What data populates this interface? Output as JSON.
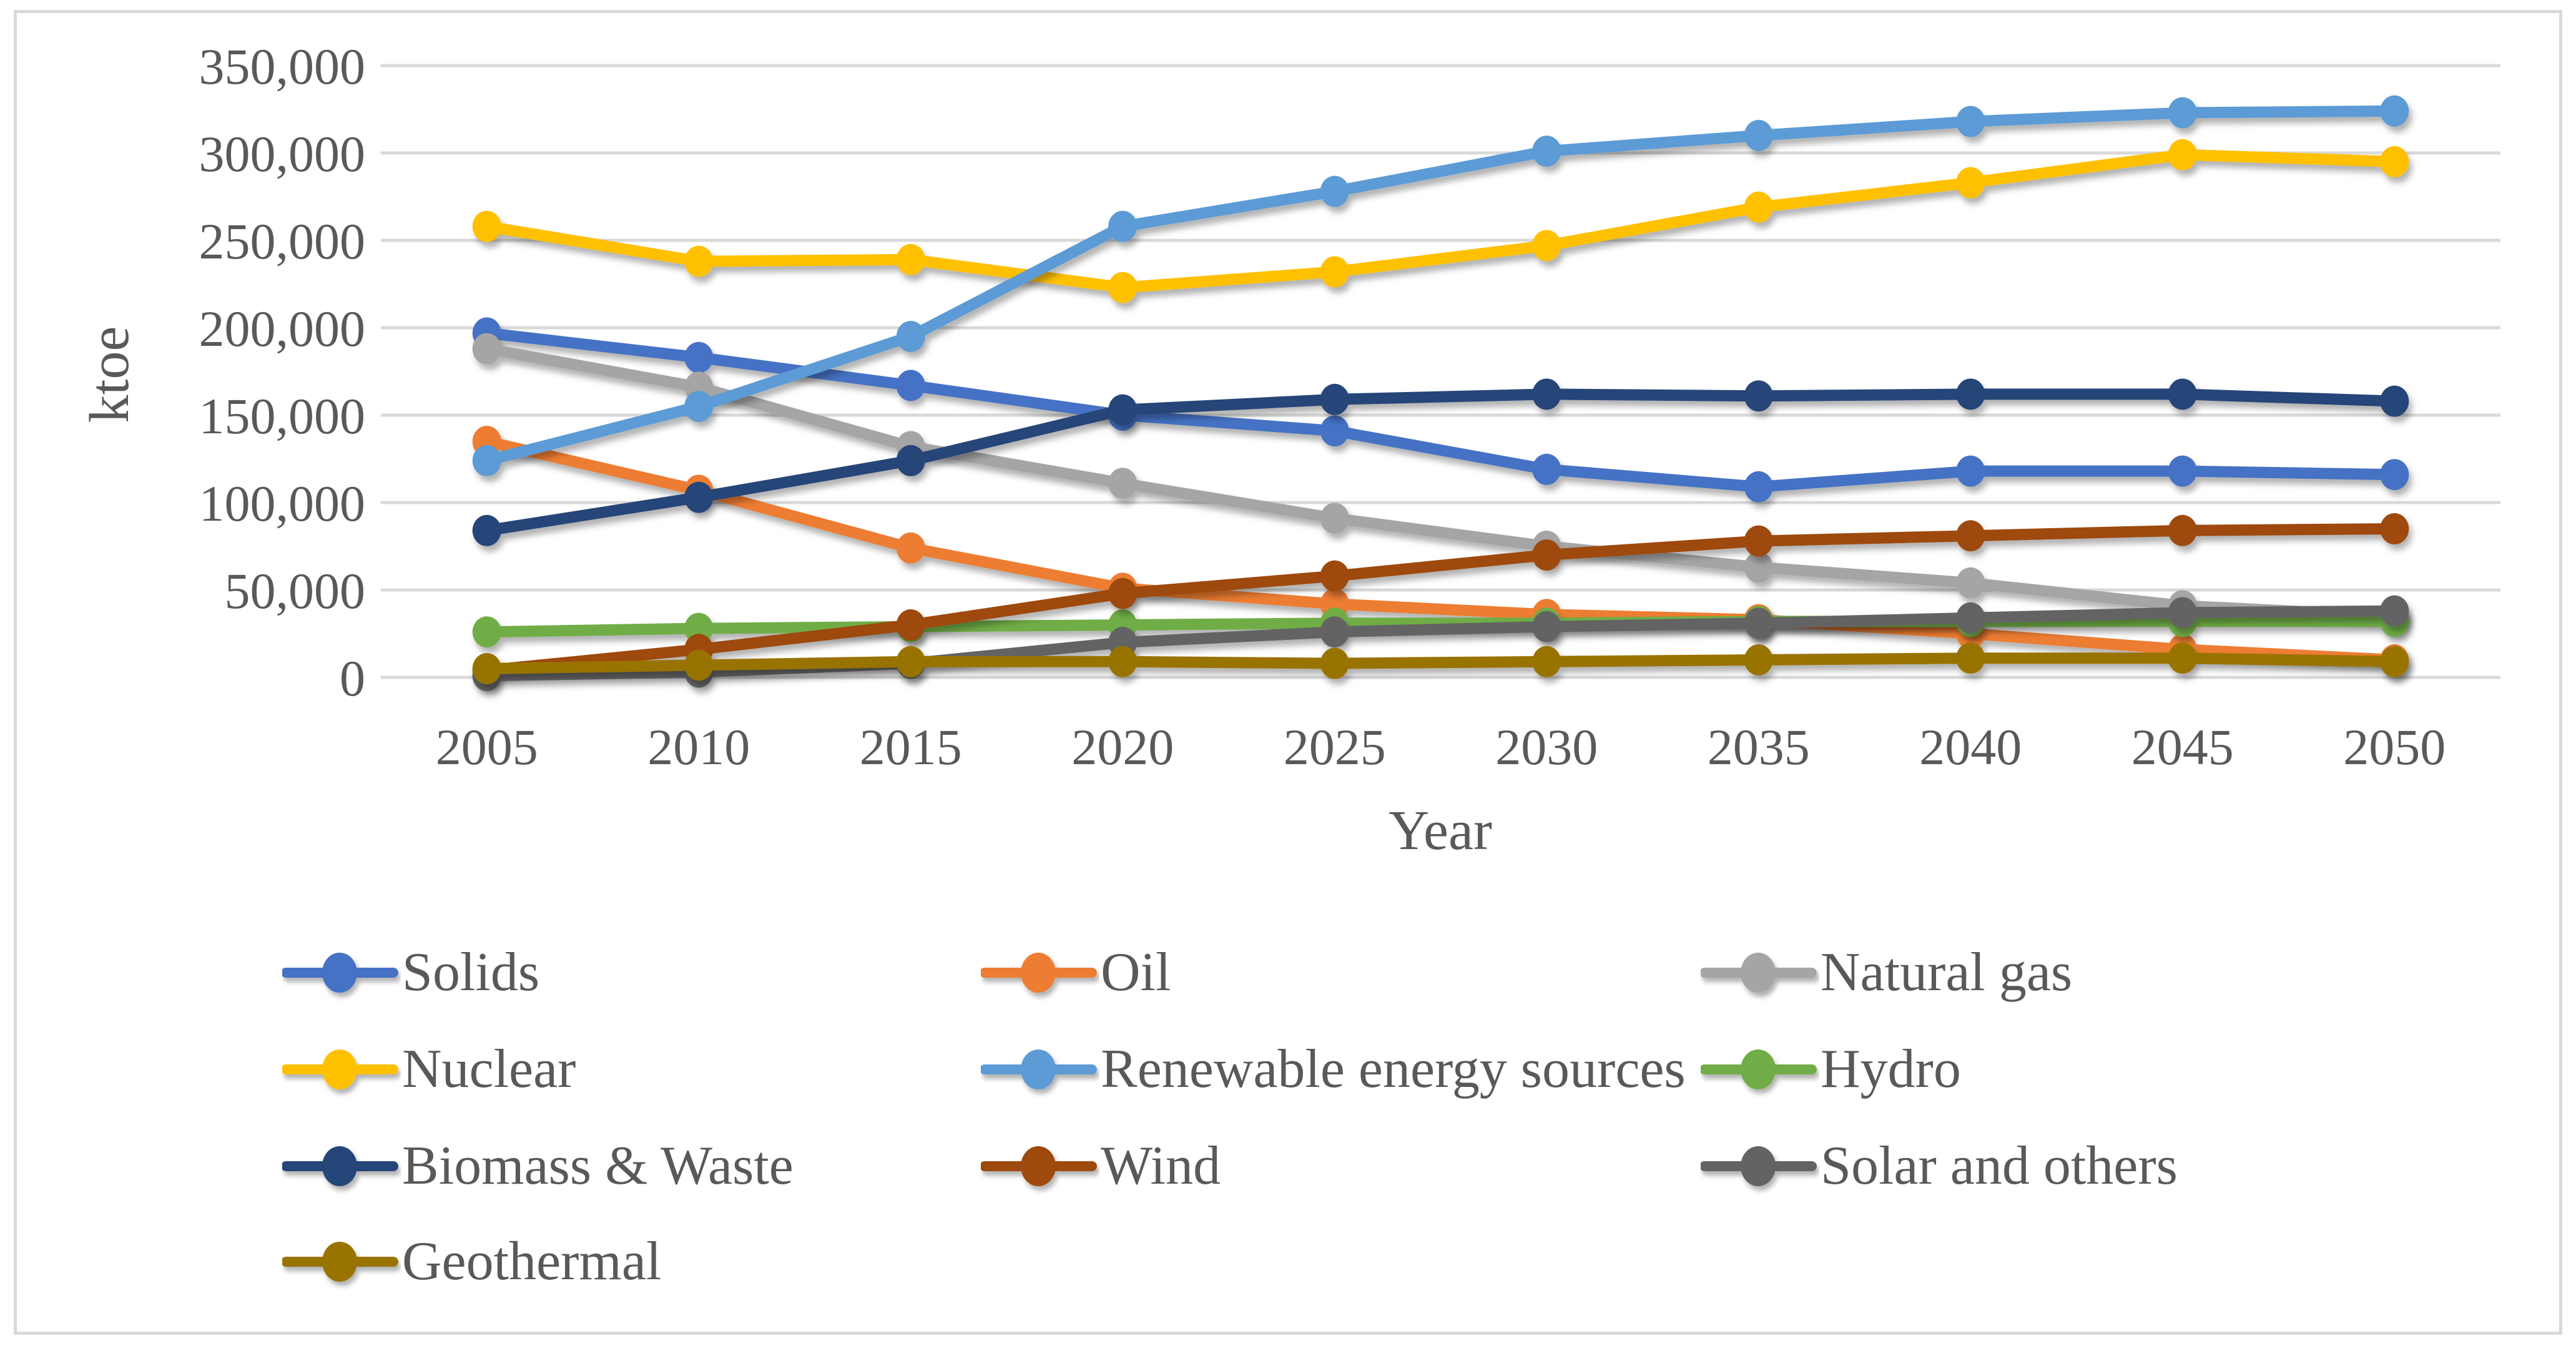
{
  "figure": {
    "background": "#FFFFFF",
    "border_color": "#D9D9D9",
    "gridline_color": "#D9D9D9",
    "text_color": "#595959"
  },
  "chart_data": {
    "type": "line",
    "title": "",
    "xlabel": "Year",
    "ylabel": "ktoe",
    "unit": "ktoe",
    "grid": true,
    "legend_position": "bottom",
    "ylim": [
      0,
      350000
    ],
    "ytick_step": 50000,
    "ytick_labels": [
      "0",
      "50,000",
      "100,000",
      "150,000",
      "200,000",
      "250,000",
      "300,000",
      "350,000"
    ],
    "categories": [
      "2005",
      "2010",
      "2015",
      "2020",
      "2025",
      "2030",
      "2035",
      "2040",
      "2045",
      "2050"
    ],
    "series": [
      {
        "name": "Solids",
        "color": "#4472C4",
        "values": [
          197000,
          183000,
          167000,
          150000,
          141000,
          119000,
          109000,
          118000,
          118000,
          116000
        ]
      },
      {
        "name": "Oil",
        "color": "#ED7D31",
        "values": [
          135000,
          107000,
          74000,
          51000,
          42000,
          36000,
          33000,
          25000,
          16000,
          10000
        ]
      },
      {
        "name": "Natural gas",
        "color": "#A5A5A5",
        "values": [
          188000,
          166000,
          132000,
          111000,
          91000,
          75000,
          63000,
          54000,
          41000,
          35000
        ]
      },
      {
        "name": "Nuclear",
        "color": "#FFC000",
        "values": [
          258000,
          238000,
          239000,
          223000,
          232000,
          247000,
          269000,
          283000,
          299000,
          295000
        ]
      },
      {
        "name": "Renewable energy sources",
        "color": "#5B9BD5",
        "values": [
          124000,
          155000,
          195000,
          258000,
          278000,
          301000,
          310000,
          318000,
          323000,
          324000
        ]
      },
      {
        "name": "Hydro",
        "color": "#70AD47",
        "values": [
          26000,
          28000,
          29000,
          30000,
          31000,
          31000,
          32000,
          32000,
          32000,
          32000
        ]
      },
      {
        "name": "Biomass & Waste",
        "color": "#264478",
        "values": [
          84000,
          103000,
          124000,
          153000,
          159000,
          162000,
          161000,
          162000,
          162000,
          158000
        ]
      },
      {
        "name": "Wind",
        "color": "#9E480E",
        "values": [
          4000,
          16000,
          30000,
          48000,
          58000,
          70000,
          78000,
          81000,
          84000,
          85000
        ]
      },
      {
        "name": "Solar and others",
        "color": "#636363",
        "values": [
          1000,
          3000,
          8000,
          20000,
          26000,
          29000,
          31000,
          34000,
          37000,
          38000
        ]
      },
      {
        "name": "Geothermal",
        "color": "#997300",
        "values": [
          5000,
          7000,
          9000,
          9000,
          8000,
          9000,
          10000,
          11000,
          11000,
          9000
        ]
      }
    ]
  },
  "legend": {
    "labels": [
      "Solids",
      "Oil",
      "Natural gas",
      "Nuclear",
      "Renewable energy sources",
      "Hydro",
      "Biomass & Waste",
      "Wind",
      "Solar and others",
      "Geothermal"
    ]
  }
}
